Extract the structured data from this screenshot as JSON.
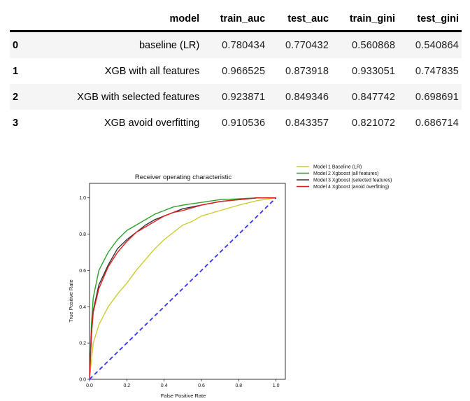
{
  "table": {
    "headers": [
      "",
      "model",
      "train_auc",
      "test_auc",
      "train_gini",
      "test_gini"
    ],
    "rows": [
      {
        "index": "0",
        "model": "baseline (LR)",
        "train_auc": "0.780434",
        "test_auc": "0.770432",
        "train_gini": "0.560868",
        "test_gini": "0.540864"
      },
      {
        "index": "1",
        "model": "XGB with all features",
        "train_auc": "0.966525",
        "test_auc": "0.873918",
        "train_gini": "0.933051",
        "test_gini": "0.747835"
      },
      {
        "index": "2",
        "model": "XGB with selected features",
        "train_auc": "0.923871",
        "test_auc": "0.849346",
        "train_gini": "0.847742",
        "test_gini": "0.698691"
      },
      {
        "index": "3",
        "model": "XGB avoid overfitting",
        "train_auc": "0.910536",
        "test_auc": "0.843357",
        "train_gini": "0.821072",
        "test_gini": "0.686714"
      }
    ]
  },
  "chart_data": {
    "type": "line",
    "title": "Receiver operating characteristic",
    "xlabel": "False Positive Rate",
    "ylabel": "True Positive Rate",
    "xlim": [
      0,
      1.05
    ],
    "ylim": [
      0,
      1.08
    ],
    "xticks": [
      0.0,
      0.2,
      0.4,
      0.6,
      0.8,
      1.0
    ],
    "xtick_labels": [
      "0.0",
      "0.2",
      "0.4",
      "0.6",
      "0.8",
      "1.0"
    ],
    "yticks": [
      0.0,
      0.2,
      0.4,
      0.6,
      0.8,
      1.0
    ],
    "ytick_labels": [
      "0.0",
      "0.2",
      "0.4",
      "0.6",
      "0.8",
      "1.0"
    ],
    "legend_position": "outside-top-right",
    "series": [
      {
        "name": "Model 1 Baseline (LR)",
        "color": "#cccc33",
        "x": [
          0,
          0.02,
          0.05,
          0.1,
          0.15,
          0.2,
          0.25,
          0.3,
          0.35,
          0.4,
          0.45,
          0.5,
          0.55,
          0.6,
          0.7,
          0.8,
          0.9,
          1.0
        ],
        "y": [
          0,
          0.2,
          0.3,
          0.4,
          0.47,
          0.53,
          0.6,
          0.66,
          0.72,
          0.77,
          0.81,
          0.85,
          0.87,
          0.9,
          0.93,
          0.96,
          0.985,
          1.0
        ]
      },
      {
        "name": "Model 2 Xgboost (all features)",
        "color": "#2ca02c",
        "x": [
          0,
          0.01,
          0.02,
          0.05,
          0.1,
          0.15,
          0.2,
          0.25,
          0.3,
          0.35,
          0.4,
          0.45,
          0.5,
          0.6,
          0.7,
          0.8,
          0.9,
          1.0
        ],
        "y": [
          0,
          0.3,
          0.45,
          0.6,
          0.7,
          0.77,
          0.82,
          0.85,
          0.88,
          0.91,
          0.93,
          0.95,
          0.96,
          0.975,
          0.99,
          0.995,
          1.0,
          1.0
        ]
      },
      {
        "name": "Model 3 Xgboost (selected features)",
        "color": "#333333",
        "x": [
          0,
          0.01,
          0.02,
          0.05,
          0.1,
          0.15,
          0.2,
          0.25,
          0.3,
          0.35,
          0.4,
          0.45,
          0.5,
          0.6,
          0.7,
          0.8,
          0.9,
          1.0
        ],
        "y": [
          0,
          0.25,
          0.38,
          0.52,
          0.63,
          0.72,
          0.77,
          0.81,
          0.85,
          0.88,
          0.9,
          0.92,
          0.94,
          0.96,
          0.98,
          0.99,
          1.0,
          1.0
        ]
      },
      {
        "name": "Model 4 Xgboost (avoid overfitting)",
        "color": "#e31a1c",
        "x": [
          0,
          0.01,
          0.02,
          0.05,
          0.1,
          0.15,
          0.2,
          0.25,
          0.3,
          0.35,
          0.4,
          0.45,
          0.5,
          0.6,
          0.7,
          0.8,
          0.9,
          1.0
        ],
        "y": [
          0,
          0.24,
          0.37,
          0.5,
          0.62,
          0.7,
          0.76,
          0.81,
          0.84,
          0.87,
          0.9,
          0.92,
          0.93,
          0.96,
          0.98,
          0.99,
          1.0,
          1.0
        ]
      }
    ],
    "reference_line": {
      "x": [
        0,
        1
      ],
      "y": [
        0,
        1
      ],
      "color": "#3333ff",
      "style": "dashed"
    }
  }
}
